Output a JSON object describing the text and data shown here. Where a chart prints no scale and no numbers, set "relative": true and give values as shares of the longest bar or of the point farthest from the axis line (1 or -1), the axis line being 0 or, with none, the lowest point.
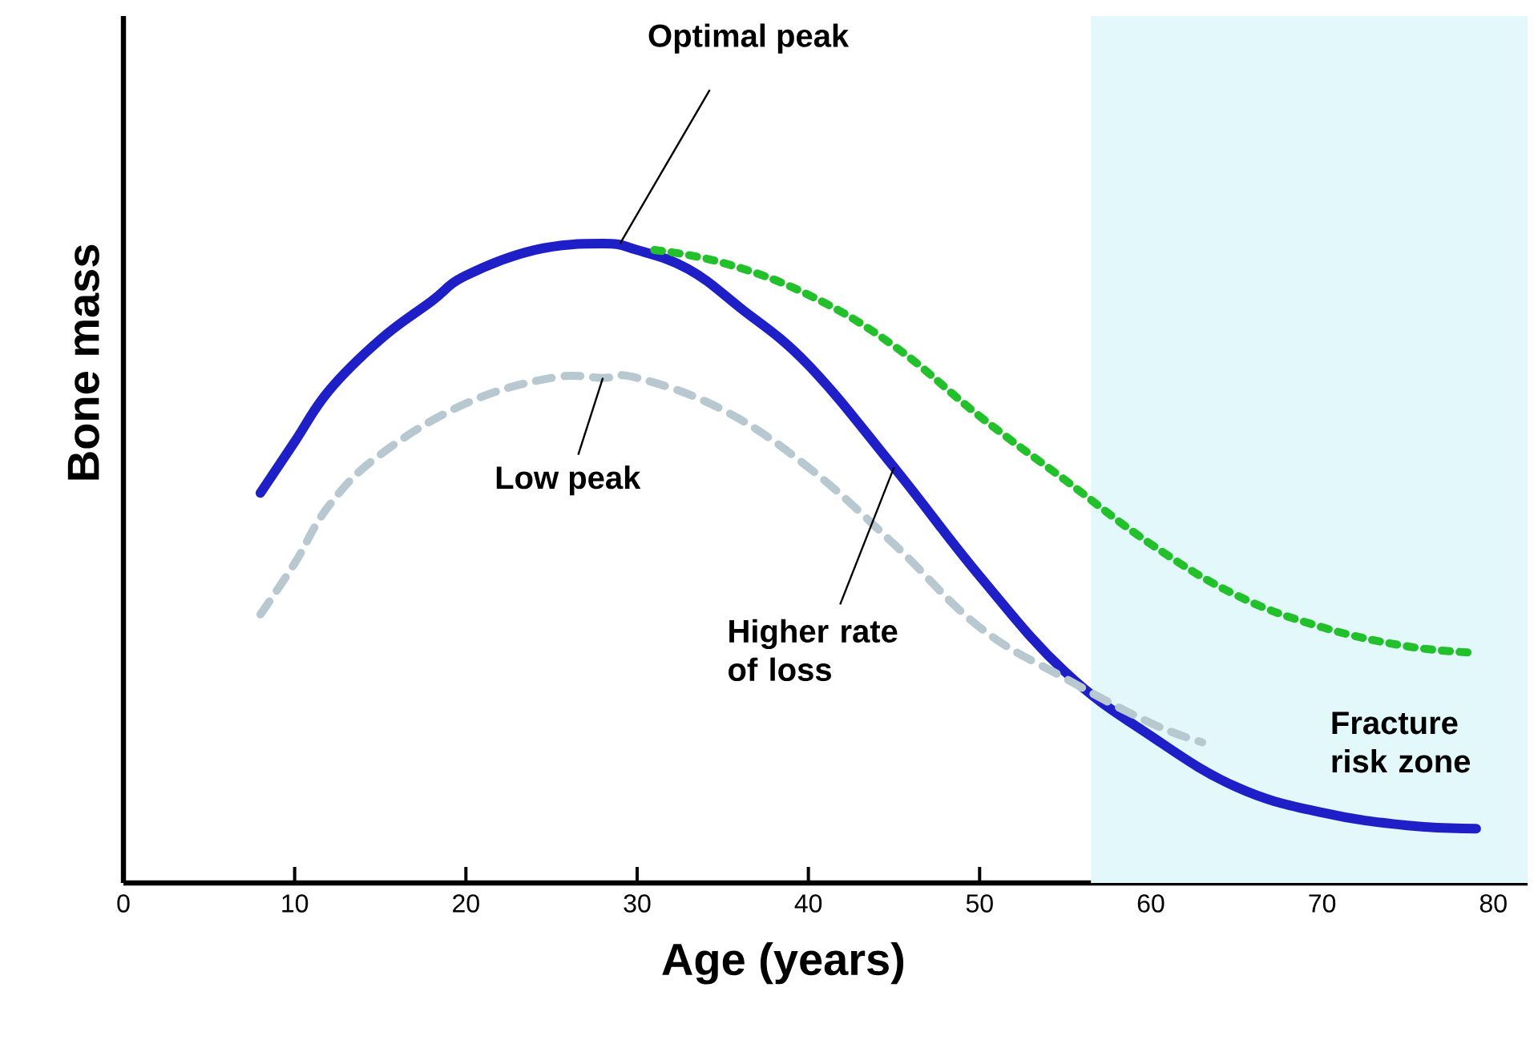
{
  "chart_data": {
    "type": "line",
    "xlabel": "Age (years)",
    "ylabel": "Bone mass",
    "relative": true,
    "tick_labels": "x",
    "grid": false,
    "xlim": [
      0,
      82
    ],
    "xticks": [
      0,
      10,
      20,
      30,
      40,
      50,
      60,
      70,
      80
    ],
    "series": [
      {
        "color": "#1f1fc8",
        "line_style": "solid",
        "x": [
          8,
          10,
          12,
          15,
          18,
          20,
          24,
          28,
          30,
          33,
          36,
          40,
          45,
          50,
          55,
          60,
          65,
          70,
          75,
          79
        ],
        "values": [
          0.61,
          0.69,
          0.77,
          0.85,
          0.91,
          0.95,
          0.99,
          1.0,
          0.99,
          0.96,
          0.9,
          0.81,
          0.65,
          0.48,
          0.33,
          0.23,
          0.15,
          0.11,
          0.09,
          0.085
        ]
      },
      {
        "color": "#22c02a",
        "line_style": "dotted",
        "x": [
          31,
          35,
          40,
          45,
          50,
          55,
          60,
          65,
          70,
          75,
          79
        ],
        "values": [
          0.99,
          0.97,
          0.92,
          0.84,
          0.73,
          0.63,
          0.53,
          0.45,
          0.4,
          0.37,
          0.36
        ]
      },
      {
        "color": "#b8c8d0",
        "line_style": "dashed",
        "x": [
          8,
          10,
          12,
          15,
          20,
          25,
          28,
          30,
          35,
          40,
          45,
          50,
          55,
          60,
          63
        ],
        "values": [
          0.42,
          0.5,
          0.59,
          0.67,
          0.75,
          0.79,
          0.79,
          0.79,
          0.74,
          0.65,
          0.53,
          0.4,
          0.32,
          0.25,
          0.22
        ]
      }
    ],
    "annotations": [
      {
        "text": "Optimal peak",
        "x": 29,
        "y": 1.0
      },
      {
        "text": "Low peak",
        "x": 28,
        "y": 0.79
      },
      {
        "text": "Higher rate of loss",
        "x": 45,
        "y": 0.65
      }
    ],
    "bands": [
      {
        "axis": "x",
        "from": 56.5,
        "to": 82,
        "label": "Fracture risk zone",
        "color": "#e3f8fb"
      }
    ]
  }
}
